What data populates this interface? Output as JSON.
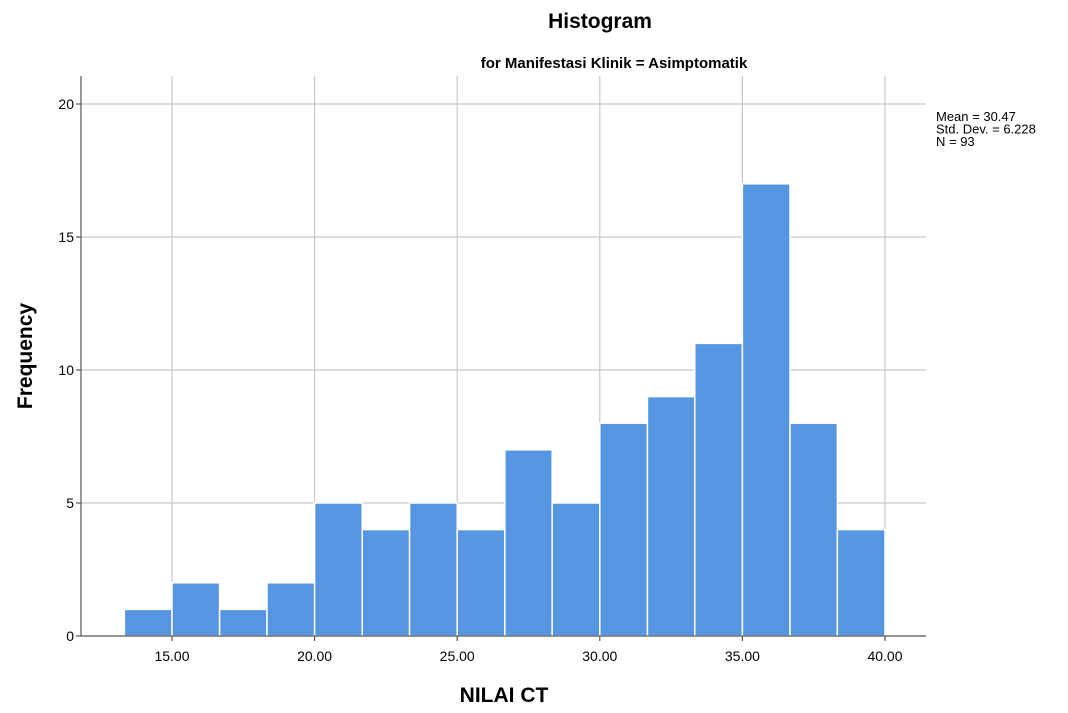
{
  "chart_data": {
    "type": "bar",
    "title": "Histogram",
    "subtitle": "for Manifestasi Klinik = Asimptomatik",
    "xlabel": "NILAI CT",
    "ylabel": "Frequency",
    "xlim": [
      12.6,
      41.8
    ],
    "ylim": [
      0,
      21
    ],
    "grid": true,
    "x_ticks": [
      15,
      20,
      25,
      30,
      35,
      40
    ],
    "x_tick_labels": [
      "15.00",
      "20.00",
      "25.00",
      "30.00",
      "35.00",
      "40.00"
    ],
    "y_ticks": [
      0,
      5,
      10,
      15,
      20
    ],
    "y_tick_labels": [
      "0",
      "5",
      "10",
      "15",
      "20"
    ],
    "bin_width": 1.667,
    "bins": [
      {
        "start": 13.33,
        "end": 15.0,
        "frequency": 1
      },
      {
        "start": 15.0,
        "end": 16.67,
        "frequency": 2
      },
      {
        "start": 16.67,
        "end": 18.33,
        "frequency": 1
      },
      {
        "start": 18.33,
        "end": 20.0,
        "frequency": 2
      },
      {
        "start": 20.0,
        "end": 21.67,
        "frequency": 5
      },
      {
        "start": 21.67,
        "end": 23.33,
        "frequency": 4
      },
      {
        "start": 23.33,
        "end": 25.0,
        "frequency": 5
      },
      {
        "start": 25.0,
        "end": 26.67,
        "frequency": 4
      },
      {
        "start": 26.67,
        "end": 28.33,
        "frequency": 7
      },
      {
        "start": 28.33,
        "end": 30.0,
        "frequency": 5
      },
      {
        "start": 30.0,
        "end": 31.67,
        "frequency": 8
      },
      {
        "start": 31.67,
        "end": 33.33,
        "frequency": 9
      },
      {
        "start": 33.33,
        "end": 35.0,
        "frequency": 11
      },
      {
        "start": 35.0,
        "end": 36.67,
        "frequency": 17
      },
      {
        "start": 36.67,
        "end": 38.33,
        "frequency": 8
      },
      {
        "start": 38.33,
        "end": 40.0,
        "frequency": 4
      }
    ],
    "bar_color": "#5595e2",
    "legend_position": "right",
    "stats": [
      "Mean = 30.47",
      "Std. Dev. = 6.228",
      "N = 93"
    ]
  }
}
